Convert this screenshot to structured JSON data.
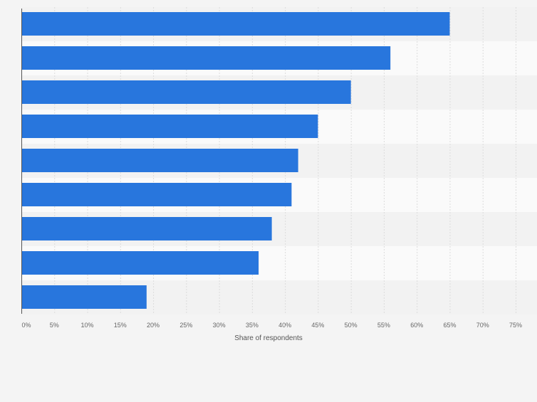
{
  "chart_data": {
    "type": "bar",
    "orientation": "horizontal",
    "categories": [
      "",
      "",
      "",
      "",
      "",
      "",
      "",
      "",
      ""
    ],
    "values": [
      65,
      56,
      50,
      45,
      42,
      41,
      38,
      36,
      19
    ],
    "unit": "%",
    "xlabel": "Share of respondents",
    "ylabel": "",
    "xlim": [
      0,
      75
    ],
    "ticks": [
      "0%",
      "5%",
      "10%",
      "15%",
      "20%",
      "25%",
      "30%",
      "35%",
      "40%",
      "45%",
      "50%",
      "55%",
      "60%",
      "65%",
      "70%",
      "75%"
    ],
    "grid": true,
    "legend": "none",
    "colors": {
      "bar": "#2876dd",
      "background": "#f4f4f4",
      "band_light": "#fafafa",
      "band_dark": "#f2f2f2",
      "grid": "#dcdcdc",
      "axis": "#555555",
      "tick_text": "#666666"
    }
  }
}
